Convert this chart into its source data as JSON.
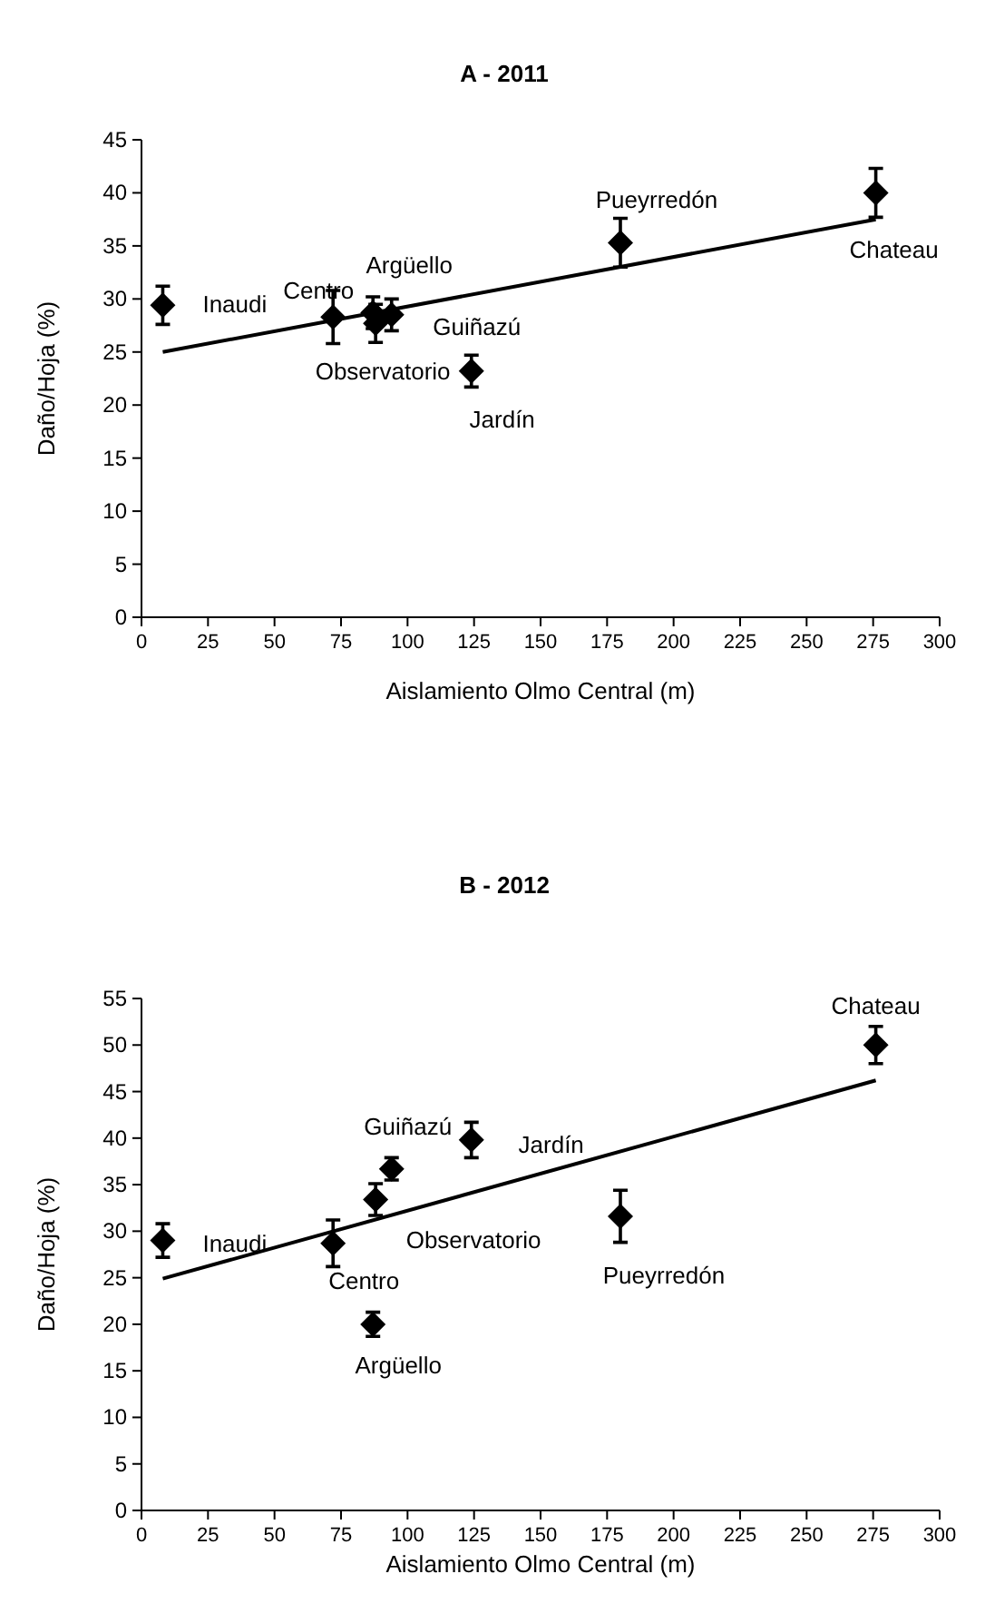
{
  "chart_data": [
    {
      "type": "scatter",
      "title": "A - 2011",
      "xlabel": "Aislamiento  Olmo  Central  (m)",
      "ylabel": "Daño/Hoja  (%)",
      "xlim": [
        0,
        300
      ],
      "xticks": [
        0,
        25,
        50,
        75,
        100,
        125,
        150,
        175,
        200,
        225,
        250,
        275,
        300
      ],
      "ylim": [
        0,
        45
      ],
      "yticks": [
        0,
        5,
        10,
        15,
        20,
        25,
        30,
        35,
        40,
        45
      ],
      "series": [
        {
          "color": "#000000",
          "marker": "diamond",
          "x": [
            8,
            72,
            88,
            87,
            94,
            124,
            180,
            276
          ],
          "values": [
            29.4,
            28.3,
            27.7,
            28.7,
            28.5,
            23.2,
            35.3,
            40
          ],
          "errors": [
            1.8,
            2.5,
            1.8,
            1.5,
            1.5,
            1.5,
            2.3,
            2.3
          ]
        },
        {
          "type": "line",
          "color": "#000000",
          "x": [
            8,
            276
          ],
          "values": [
            25,
            37.5
          ]
        }
      ],
      "annotations": [
        {
          "text": "Inaudi",
          "x": 8,
          "y": 29.4
        },
        {
          "text": "Centro",
          "x": 72,
          "y": 28.3
        },
        {
          "text": "Observatorio",
          "x": 88,
          "y": 27.7
        },
        {
          "text": "Argüello",
          "x": 87,
          "y": 28.7
        },
        {
          "text": "Guiñazú",
          "x": 94,
          "y": 28.5
        },
        {
          "text": "Jardín",
          "x": 124,
          "y": 23.2
        },
        {
          "text": "Pueyrredón",
          "x": 180,
          "y": 35.3
        },
        {
          "text": "Chateau",
          "x": 276,
          "y": 40
        }
      ]
    },
    {
      "type": "scatter",
      "title": "B - 2012",
      "xlabel": "Aislamiento  Olmo  Central  (m)",
      "ylabel": "Daño/Hoja  (%)",
      "xlim": [
        0,
        300
      ],
      "xticks": [
        0,
        25,
        50,
        75,
        100,
        125,
        150,
        175,
        200,
        225,
        250,
        275,
        300
      ],
      "ylim": [
        0,
        55
      ],
      "yticks": [
        0,
        5,
        10,
        15,
        20,
        25,
        30,
        35,
        40,
        45,
        50,
        55
      ],
      "series": [
        {
          "color": "#000000",
          "marker": "diamond",
          "x": [
            8,
            72,
            88,
            87,
            94,
            124,
            180,
            276
          ],
          "values": [
            29,
            28.7,
            33.4,
            20,
            36.7,
            39.8,
            31.6,
            50
          ],
          "errors": [
            1.8,
            2.5,
            1.7,
            1.3,
            1.2,
            1.9,
            2.8,
            2
          ]
        },
        {
          "type": "line",
          "color": "#000000",
          "x": [
            8,
            276
          ],
          "values": [
            24.9,
            46.2
          ]
        }
      ],
      "annotations": [
        {
          "text": "Inaudi",
          "x": 8,
          "y": 29
        },
        {
          "text": "Centro",
          "x": 72,
          "y": 28.7
        },
        {
          "text": "Observatorio",
          "x": 88,
          "y": 33.4
        },
        {
          "text": "Argüello",
          "x": 87,
          "y": 20
        },
        {
          "text": "Guiñazú",
          "x": 94,
          "y": 36.7
        },
        {
          "text": "Jardín",
          "x": 124,
          "y": 39.8
        },
        {
          "text": "Pueyrredón",
          "x": 180,
          "y": 31.6
        },
        {
          "text": "Chateau",
          "x": 276,
          "y": 50
        }
      ]
    }
  ]
}
